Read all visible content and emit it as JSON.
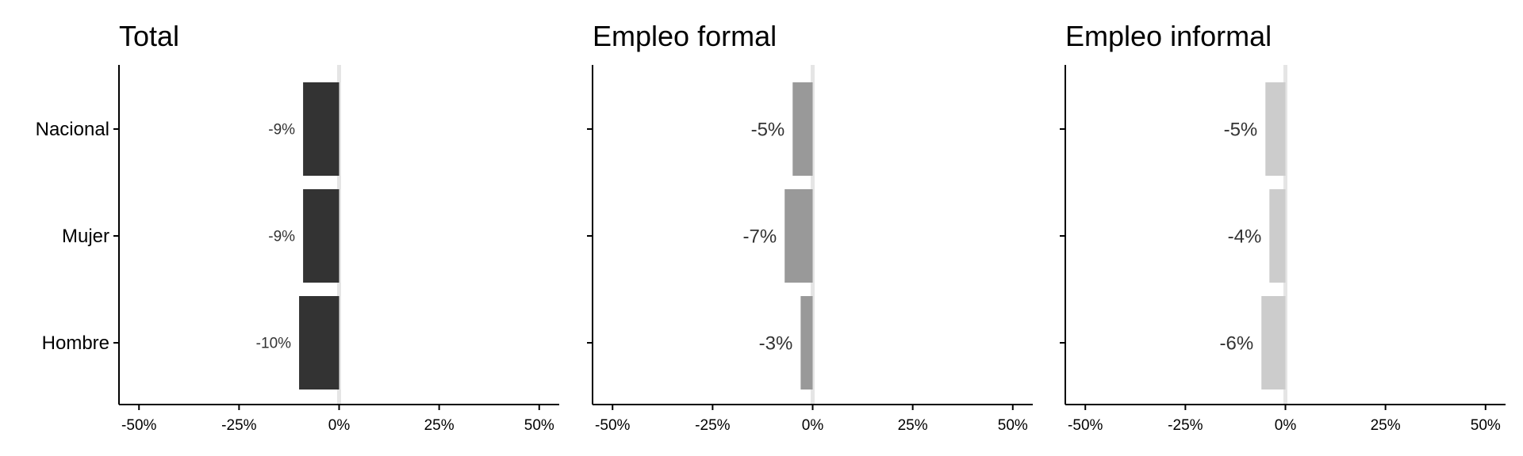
{
  "chart_data": [
    {
      "type": "bar",
      "orientation": "horizontal",
      "title": "Total",
      "categories": [
        "Nacional",
        "Mujer",
        "Hombre"
      ],
      "values": [
        -9,
        -9,
        -10
      ],
      "labels": [
        "-9%",
        "-9%",
        "-10%"
      ],
      "xlim": [
        -55,
        55
      ],
      "xticks": [
        -50,
        -25,
        0,
        25,
        50
      ],
      "xtick_labels": [
        "-50%",
        "-25%",
        "0%",
        "25%",
        "50%"
      ],
      "bar_color": "#333333",
      "grid": false
    },
    {
      "type": "bar",
      "orientation": "horizontal",
      "title": "Empleo formal",
      "categories": [
        "Nacional",
        "Mujer",
        "Hombre"
      ],
      "values": [
        -5,
        -7,
        -3
      ],
      "labels": [
        "-5%",
        "-7%",
        "-3%"
      ],
      "xlim": [
        -55,
        55
      ],
      "xticks": [
        -50,
        -25,
        0,
        25,
        50
      ],
      "xtick_labels": [
        "-50%",
        "-25%",
        "0%",
        "25%",
        "50%"
      ],
      "bar_color": "#999999",
      "grid": false
    },
    {
      "type": "bar",
      "orientation": "horizontal",
      "title": "Empleo informal",
      "categories": [
        "Nacional",
        "Mujer",
        "Hombre"
      ],
      "values": [
        -5,
        -4,
        -6
      ],
      "labels": [
        "-5%",
        "-4%",
        "-6%"
      ],
      "xlim": [
        -55,
        55
      ],
      "xticks": [
        -50,
        -25,
        0,
        25,
        50
      ],
      "xtick_labels": [
        "-50%",
        "-25%",
        "0%",
        "25%",
        "50%"
      ],
      "bar_color": "#cccccc",
      "grid": false
    }
  ],
  "colors": {
    "zero_line": "#e5e5e5",
    "axis": "#000000",
    "label_text": "#333333"
  }
}
